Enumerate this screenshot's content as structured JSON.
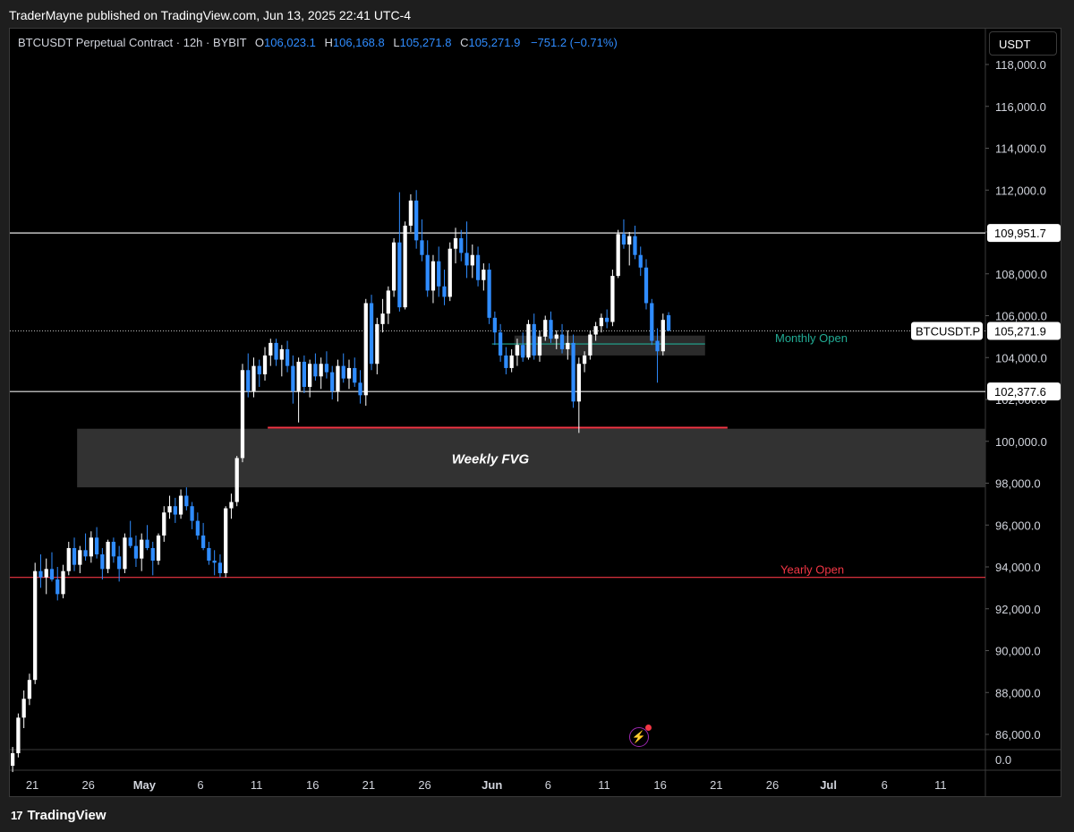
{
  "header": {
    "publisher": "TraderMayne published on TradingView.com, Jun 13, 2025 22:41 UTC-4"
  },
  "legend": {
    "symbol": "BTCUSDT Perpetual Contract · 12h · BYBIT",
    "o_label": "O",
    "o_value": "106,023.1",
    "h_label": "H",
    "h_value": "106,168.8",
    "l_label": "L",
    "l_value": "105,271.8",
    "c_label": "C",
    "c_value": "105,271.9",
    "change": "−751.2 (−0.71%)"
  },
  "axis": {
    "currency": "USDT",
    "extra_tick": "0.0"
  },
  "footer": {
    "brand": "TradingView",
    "logo_glyph": "17"
  },
  "icons": {
    "alert": "lightning-icon"
  },
  "colors": {
    "up": "#ffffff",
    "down": "#2f8cff",
    "red": "#f23645",
    "green": "#22ab94",
    "zone": "#2e2e2e"
  },
  "chart_data": {
    "type": "candlestick",
    "interval": "12h",
    "ylim": [
      85000,
      119000
    ],
    "y_ticks": [
      86000,
      88000,
      90000,
      92000,
      94000,
      96000,
      98000,
      100000,
      102000,
      104000,
      106000,
      108000,
      110000,
      112000,
      114000,
      116000,
      118000
    ],
    "y_tick_labels": [
      "86,000.0",
      "88,000.0",
      "90,000.0",
      "92,000.0",
      "94,000.0",
      "96,000.0",
      "98,000.0",
      "100,000.0",
      "102,000.0",
      "104,000.0",
      "106,000.0",
      "108,000.0",
      "110,000.0",
      "112,000.0",
      "114,000.0",
      "116,000.0",
      "118,000.0"
    ],
    "x_ticks": [
      "2025-04-21",
      "2025-04-26",
      "2025-05-01",
      "2025-05-06",
      "2025-05-11",
      "2025-05-16",
      "2025-05-21",
      "2025-05-26",
      "2025-06-01",
      "2025-06-06",
      "2025-06-11",
      "2025-06-16",
      "2025-06-21",
      "2025-06-26",
      "2025-07-01",
      "2025-07-06",
      "2025-07-11"
    ],
    "x_tick_labels": [
      "21",
      "26",
      "May",
      "6",
      "11",
      "16",
      "21",
      "26",
      "Jun",
      "6",
      "11",
      "16",
      "21",
      "26",
      "Jul",
      "6",
      "11"
    ],
    "x_start": "2025-04-19",
    "x_end": "2025-07-15",
    "candles": [
      [
        84500,
        85400,
        84200,
        85100
      ],
      [
        85100,
        87000,
        84900,
        86800
      ],
      [
        86800,
        88100,
        86300,
        87700
      ],
      [
        87700,
        88900,
        87400,
        88600
      ],
      [
        88600,
        94200,
        88400,
        93800
      ],
      [
        93800,
        94600,
        93000,
        93500
      ],
      [
        93500,
        94400,
        92700,
        93900
      ],
      [
        93900,
        94700,
        93300,
        93400
      ],
      [
        93400,
        94000,
        92400,
        92700
      ],
      [
        92700,
        94100,
        92500,
        93800
      ],
      [
        93800,
        95200,
        93600,
        94900
      ],
      [
        94900,
        95400,
        93800,
        94100
      ],
      [
        94100,
        95000,
        93700,
        94800
      ],
      [
        94800,
        95600,
        94300,
        94500
      ],
      [
        94500,
        95700,
        94200,
        95400
      ],
      [
        95400,
        95900,
        94400,
        94600
      ],
      [
        94600,
        94900,
        93400,
        93900
      ],
      [
        93900,
        95300,
        93700,
        95200
      ],
      [
        95200,
        95400,
        94200,
        94500
      ],
      [
        94500,
        95000,
        93300,
        93900
      ],
      [
        93900,
        95600,
        93700,
        95400
      ],
      [
        95400,
        96200,
        94900,
        95000
      ],
      [
        95000,
        95500,
        94000,
        94400
      ],
      [
        94400,
        95600,
        93800,
        95300
      ],
      [
        95300,
        96000,
        94800,
        94900
      ],
      [
        94900,
        95200,
        93600,
        94300
      ],
      [
        94300,
        95600,
        94100,
        95500
      ],
      [
        95500,
        96900,
        95200,
        96600
      ],
      [
        96600,
        97400,
        96300,
        96900
      ],
      [
        96900,
        97300,
        96100,
        96500
      ],
      [
        96500,
        97700,
        96300,
        97400
      ],
      [
        97400,
        97800,
        96700,
        96900
      ],
      [
        96900,
        97100,
        95800,
        96200
      ],
      [
        96200,
        96600,
        95300,
        95500
      ],
      [
        95500,
        96100,
        94800,
        94900
      ],
      [
        94900,
        95200,
        94100,
        94300
      ],
      [
        94300,
        94800,
        93600,
        94200
      ],
      [
        94200,
        94600,
        93500,
        93700
      ],
      [
        93700,
        96900,
        93500,
        96800
      ],
      [
        96800,
        97500,
        96300,
        97100
      ],
      [
        97100,
        99300,
        96900,
        99200
      ],
      [
        99200,
        103700,
        99000,
        103400
      ],
      [
        103400,
        104200,
        102100,
        102400
      ],
      [
        102400,
        104000,
        102100,
        103600
      ],
      [
        103600,
        103900,
        102600,
        103200
      ],
      [
        103200,
        104500,
        102900,
        104100
      ],
      [
        104100,
        104900,
        103600,
        104700
      ],
      [
        104700,
        104900,
        103600,
        103900
      ],
      [
        103900,
        104600,
        103100,
        104400
      ],
      [
        104400,
        104800,
        103300,
        103600
      ],
      [
        103600,
        104100,
        101800,
        102400
      ],
      [
        102400,
        104000,
        100900,
        103800
      ],
      [
        103800,
        104100,
        102300,
        102600
      ],
      [
        102600,
        103900,
        102100,
        103700
      ],
      [
        103700,
        104200,
        102900,
        103100
      ],
      [
        103100,
        104000,
        102500,
        103700
      ],
      [
        103700,
        104300,
        103000,
        103300
      ],
      [
        103300,
        103600,
        102000,
        102400
      ],
      [
        102400,
        103900,
        101900,
        103600
      ],
      [
        103600,
        104200,
        102800,
        103000
      ],
      [
        103000,
        103900,
        102500,
        103500
      ],
      [
        103500,
        104000,
        102600,
        102800
      ],
      [
        102800,
        103400,
        101800,
        102200
      ],
      [
        102200,
        106800,
        101700,
        106600
      ],
      [
        106600,
        107000,
        103400,
        103700
      ],
      [
        103700,
        105900,
        103200,
        105600
      ],
      [
        105600,
        106800,
        105200,
        106100
      ],
      [
        106100,
        107400,
        105600,
        107200
      ],
      [
        107200,
        109700,
        106900,
        109500
      ],
      [
        109500,
        111900,
        106200,
        106400
      ],
      [
        106400,
        110500,
        106300,
        110300
      ],
      [
        110300,
        111800,
        110000,
        111500
      ],
      [
        111500,
        112000,
        109200,
        109600
      ],
      [
        109600,
        110600,
        108600,
        108900
      ],
      [
        108900,
        109600,
        106900,
        107200
      ],
      [
        107200,
        108900,
        106600,
        108600
      ],
      [
        108600,
        109300,
        106900,
        107400
      ],
      [
        107400,
        108200,
        106500,
        106900
      ],
      [
        106900,
        109500,
        106700,
        109200
      ],
      [
        109200,
        110200,
        108500,
        109700
      ],
      [
        109700,
        110100,
        108600,
        109000
      ],
      [
        109000,
        110500,
        107800,
        108400
      ],
      [
        108400,
        109400,
        107800,
        108900
      ],
      [
        108900,
        109300,
        107400,
        107700
      ],
      [
        107700,
        108500,
        107200,
        108200
      ],
      [
        108200,
        108500,
        105600,
        105900
      ],
      [
        105900,
        106200,
        104600,
        105200
      ],
      [
        105200,
        105600,
        103800,
        104100
      ],
      [
        104100,
        104500,
        103200,
        103500
      ],
      [
        103500,
        104400,
        103300,
        104100
      ],
      [
        104100,
        104900,
        103600,
        104600
      ],
      [
        104600,
        105200,
        103800,
        104000
      ],
      [
        104000,
        105800,
        103900,
        105600
      ],
      [
        105600,
        106100,
        103900,
        104100
      ],
      [
        104100,
        105300,
        103800,
        105000
      ],
      [
        105000,
        106000,
        104800,
        105800
      ],
      [
        105800,
        106200,
        104700,
        104900
      ],
      [
        104900,
        105300,
        104400,
        105100
      ],
      [
        105100,
        105600,
        104200,
        104400
      ],
      [
        104400,
        105300,
        103900,
        104700
      ],
      [
        104700,
        105100,
        101600,
        101900
      ],
      [
        101900,
        104000,
        100400,
        103700
      ],
      [
        103700,
        104300,
        103300,
        104100
      ],
      [
        104100,
        105300,
        103900,
        105100
      ],
      [
        105100,
        105700,
        104800,
        105500
      ],
      [
        105500,
        106100,
        105200,
        105900
      ],
      [
        105900,
        106300,
        105400,
        105700
      ],
      [
        105700,
        108200,
        105500,
        107900
      ],
      [
        107900,
        110100,
        107800,
        109900
      ],
      [
        109900,
        110600,
        109200,
        109400
      ],
      [
        109400,
        110000,
        108400,
        109800
      ],
      [
        109800,
        110300,
        108700,
        108900
      ],
      [
        108900,
        109300,
        107900,
        108300
      ],
      [
        108300,
        108700,
        106300,
        106600
      ],
      [
        106600,
        106800,
        104600,
        104800
      ],
      [
        104800,
        105400,
        102800,
        104300
      ],
      [
        104300,
        106100,
        104100,
        105800
      ],
      [
        106023.1,
        106168.8,
        105271.8,
        105271.9
      ]
    ],
    "levels": [
      {
        "name": "109,951.7",
        "value": 109951.7,
        "style": "white-line"
      },
      {
        "name": "102,377.6",
        "value": 102377.6,
        "style": "white-line"
      },
      {
        "name": "Yearly Open",
        "value": 93500,
        "style": "red-line"
      },
      {
        "name": "Monthly Open",
        "value": 104650,
        "style": "green-line"
      }
    ],
    "zones": [
      {
        "name": "Weekly FVG",
        "from": 97800,
        "to": 100600,
        "x_from": "2025-04-25",
        "x_to": "2025-07-15"
      },
      {
        "name": "Monthly zone",
        "from": 104100,
        "to": 105050,
        "x_from": "2025-06-03",
        "x_to": "2025-06-20"
      }
    ],
    "red_short_line": {
      "value": 100650,
      "x_from": "2025-05-12",
      "x_to": "2025-06-22"
    },
    "last_price": {
      "label": "BTCUSDT.P",
      "value": "105,271.9",
      "price": 105271.9
    }
  }
}
